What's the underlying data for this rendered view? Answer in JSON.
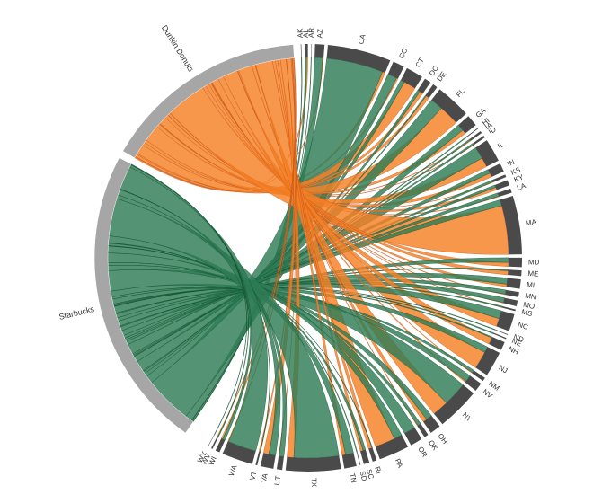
{
  "chart_data": {
    "type": "chord",
    "title": "",
    "colors": {
      "source_group_arc": "#a6a6a6",
      "target_group_arc": "#4a4a4a",
      "starbucks_ribbon": "#2e7d55",
      "dunkin_ribbon": "#f58024",
      "ribbon_edge_starbucks": "#0b4a2a",
      "ribbon_edge_dunkin": "#c4541a"
    },
    "sources": [
      {
        "id": "starbucks",
        "label": "Starbucks",
        "color_key": "starbucks_ribbon"
      },
      {
        "id": "dunkin",
        "label": "Dunkin Donuts",
        "color_key": "dunkin_ribbon"
      }
    ],
    "targets": [
      "AK",
      "AL",
      "AR",
      "AZ",
      "CA",
      "CO",
      "CT",
      "DC",
      "DE",
      "FL",
      "GA",
      "HI",
      "IA",
      "ID",
      "IL",
      "IN",
      "KS",
      "KY",
      "LA",
      "MA",
      "MD",
      "ME",
      "MI",
      "MN",
      "MO",
      "MS",
      "NC",
      "ND",
      "NE",
      "NH",
      "NJ",
      "NM",
      "NV",
      "NY",
      "OH",
      "OK",
      "OR",
      "PA",
      "RI",
      "SC",
      "SD",
      "TN",
      "TX",
      "UT",
      "VA",
      "VT",
      "WA",
      "WI",
      "WV",
      "WY"
    ],
    "flows": {
      "starbucks": [
        4,
        12,
        3,
        60,
        420,
        70,
        30,
        20,
        8,
        95,
        50,
        6,
        10,
        12,
        90,
        30,
        15,
        18,
        25,
        45,
        35,
        8,
        45,
        30,
        35,
        8,
        60,
        5,
        8,
        8,
        45,
        20,
        50,
        180,
        45,
        25,
        85,
        60,
        4,
        20,
        5,
        60,
        330,
        35,
        50,
        4,
        210,
        20,
        5,
        3
      ],
      "dunkin": [
        0,
        10,
        0,
        5,
        20,
        10,
        90,
        25,
        25,
        150,
        30,
        0,
        5,
        3,
        70,
        30,
        3,
        20,
        5,
        360,
        30,
        30,
        20,
        5,
        5,
        3,
        60,
        0,
        0,
        50,
        130,
        5,
        10,
        120,
        30,
        5,
        0,
        150,
        25,
        20,
        0,
        25,
        50,
        3,
        40,
        8,
        5,
        10,
        5,
        0
      ]
    }
  }
}
